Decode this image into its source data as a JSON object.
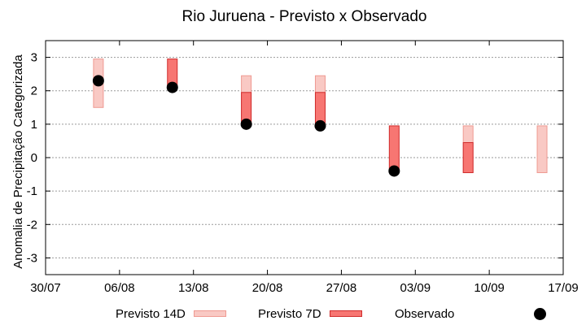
{
  "chart_data": {
    "type": "range-bar",
    "title": "Rio Juruena - Previsto x Observado",
    "ylabel": "Anomalia de Precipitação Categorizada",
    "xlabel": "",
    "xlim": [
      "2023-07-30",
      "2023-09-17"
    ],
    "ylim": [
      -3.5,
      3.5
    ],
    "x_ticks": [
      "30/07",
      "06/08",
      "13/08",
      "20/08",
      "27/08",
      "03/09",
      "10/09",
      "17/09"
    ],
    "y_ticks": [
      3,
      2,
      1,
      0,
      -1,
      -2,
      -3
    ],
    "grid": true,
    "legend_position": "bottom",
    "colors": {
      "forecast_14d_fill": "#f9c9c4",
      "forecast_14d_stroke": "#ef9a92",
      "forecast_7d_fill": "#f77672",
      "forecast_7d_stroke": "#d02c2c",
      "observed": "#000000"
    },
    "series": [
      {
        "name": "Previsto 14D",
        "points": [
          {
            "date": "2023-08-04",
            "low": 1.5,
            "high": 2.95
          },
          {
            "date": "2023-08-18",
            "low": 1.0,
            "high": 2.45
          },
          {
            "date": "2023-08-25",
            "low": 0.95,
            "high": 2.45
          },
          {
            "date": "2023-09-08",
            "low": -0.45,
            "high": 0.95
          },
          {
            "date": "2023-09-15",
            "low": -0.45,
            "high": 0.95
          }
        ]
      },
      {
        "name": "Previsto 7D",
        "points": [
          {
            "date": "2023-08-11",
            "low": 2.1,
            "high": 2.95
          },
          {
            "date": "2023-08-18",
            "low": 1.0,
            "high": 1.95
          },
          {
            "date": "2023-08-25",
            "low": 0.95,
            "high": 1.95
          },
          {
            "date": "2023-09-01",
            "low": -0.4,
            "high": 0.95
          },
          {
            "date": "2023-09-08",
            "low": -0.45,
            "high": 0.45
          }
        ]
      },
      {
        "name": "Observado",
        "points": [
          {
            "date": "2023-08-04",
            "value": 2.3
          },
          {
            "date": "2023-08-11",
            "value": 2.1
          },
          {
            "date": "2023-08-18",
            "value": 1.0
          },
          {
            "date": "2023-08-25",
            "value": 0.95
          },
          {
            "date": "2023-09-01",
            "value": -0.4
          }
        ]
      }
    ]
  }
}
